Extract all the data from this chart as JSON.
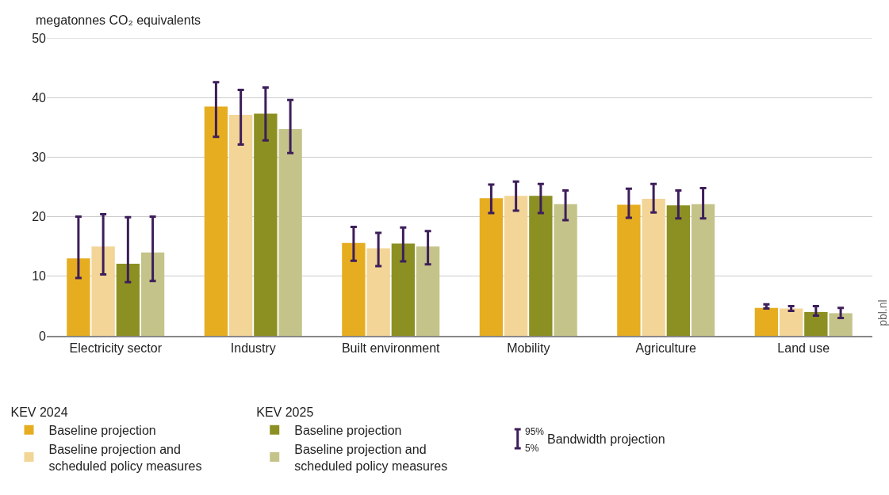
{
  "chart_data": {
    "type": "bar",
    "ylabel": "megatonnes CO₂ equivalents",
    "categories": [
      "Electricity sector",
      "Industry",
      "Built environment",
      "Mobility",
      "Agriculture",
      "Land use"
    ],
    "legend_title": [
      "KEV 2024",
      "KEV 2025"
    ],
    "series": [
      {
        "name": "Baseline projection",
        "color": "#e6ad20",
        "values": [
          13,
          38.5,
          15.6,
          23.1,
          22.0,
          4.7
        ],
        "errors": [
          [
            9.7,
            20
          ],
          [
            33.4,
            42.6
          ],
          [
            12.6,
            18.3
          ],
          [
            20.6,
            25.4
          ],
          [
            19.8,
            24.7
          ],
          [
            4.6,
            5.3
          ]
        ]
      },
      {
        "name": "Baseline projection and scheduled policy measures",
        "color": "#f2d597",
        "values": [
          15,
          37.1,
          14.7,
          23.5,
          23.0,
          4.6
        ],
        "errors": [
          [
            10.3,
            20.4
          ],
          [
            32.1,
            41.3
          ],
          [
            11.7,
            17.3
          ],
          [
            21.0,
            25.9
          ],
          [
            20.7,
            25.5
          ],
          [
            4.2,
            5.0
          ]
        ]
      },
      {
        "name": "Baseline projection",
        "color": "#8c9022",
        "values": [
          12.1,
          37.3,
          15.5,
          23.5,
          21.9,
          4.0
        ],
        "errors": [
          [
            9,
            19.9
          ],
          [
            32.8,
            41.7
          ],
          [
            12.5,
            18.2
          ],
          [
            20.6,
            25.5
          ],
          [
            19.7,
            24.4
          ],
          [
            3.4,
            5.0
          ]
        ]
      },
      {
        "name": "Baseline projection and scheduled policy measures",
        "color": "#c4c48a",
        "values": [
          14,
          34.7,
          15,
          22.1,
          22.1,
          3.8
        ],
        "errors": [
          [
            9.2,
            20
          ],
          [
            30.7,
            39.6
          ],
          [
            12,
            17.6
          ],
          [
            19.4,
            24.4
          ],
          [
            19.7,
            24.8
          ],
          [
            3.0,
            4.7
          ]
        ]
      }
    ],
    "ylim": [
      0,
      50
    ],
    "yticks": [
      0,
      10,
      20,
      30,
      40,
      50
    ],
    "grid": "y",
    "legend": "bottom left",
    "annotations": [
      "pbl.nl",
      "Bandwidth projection",
      "95%",
      "5%"
    ]
  }
}
